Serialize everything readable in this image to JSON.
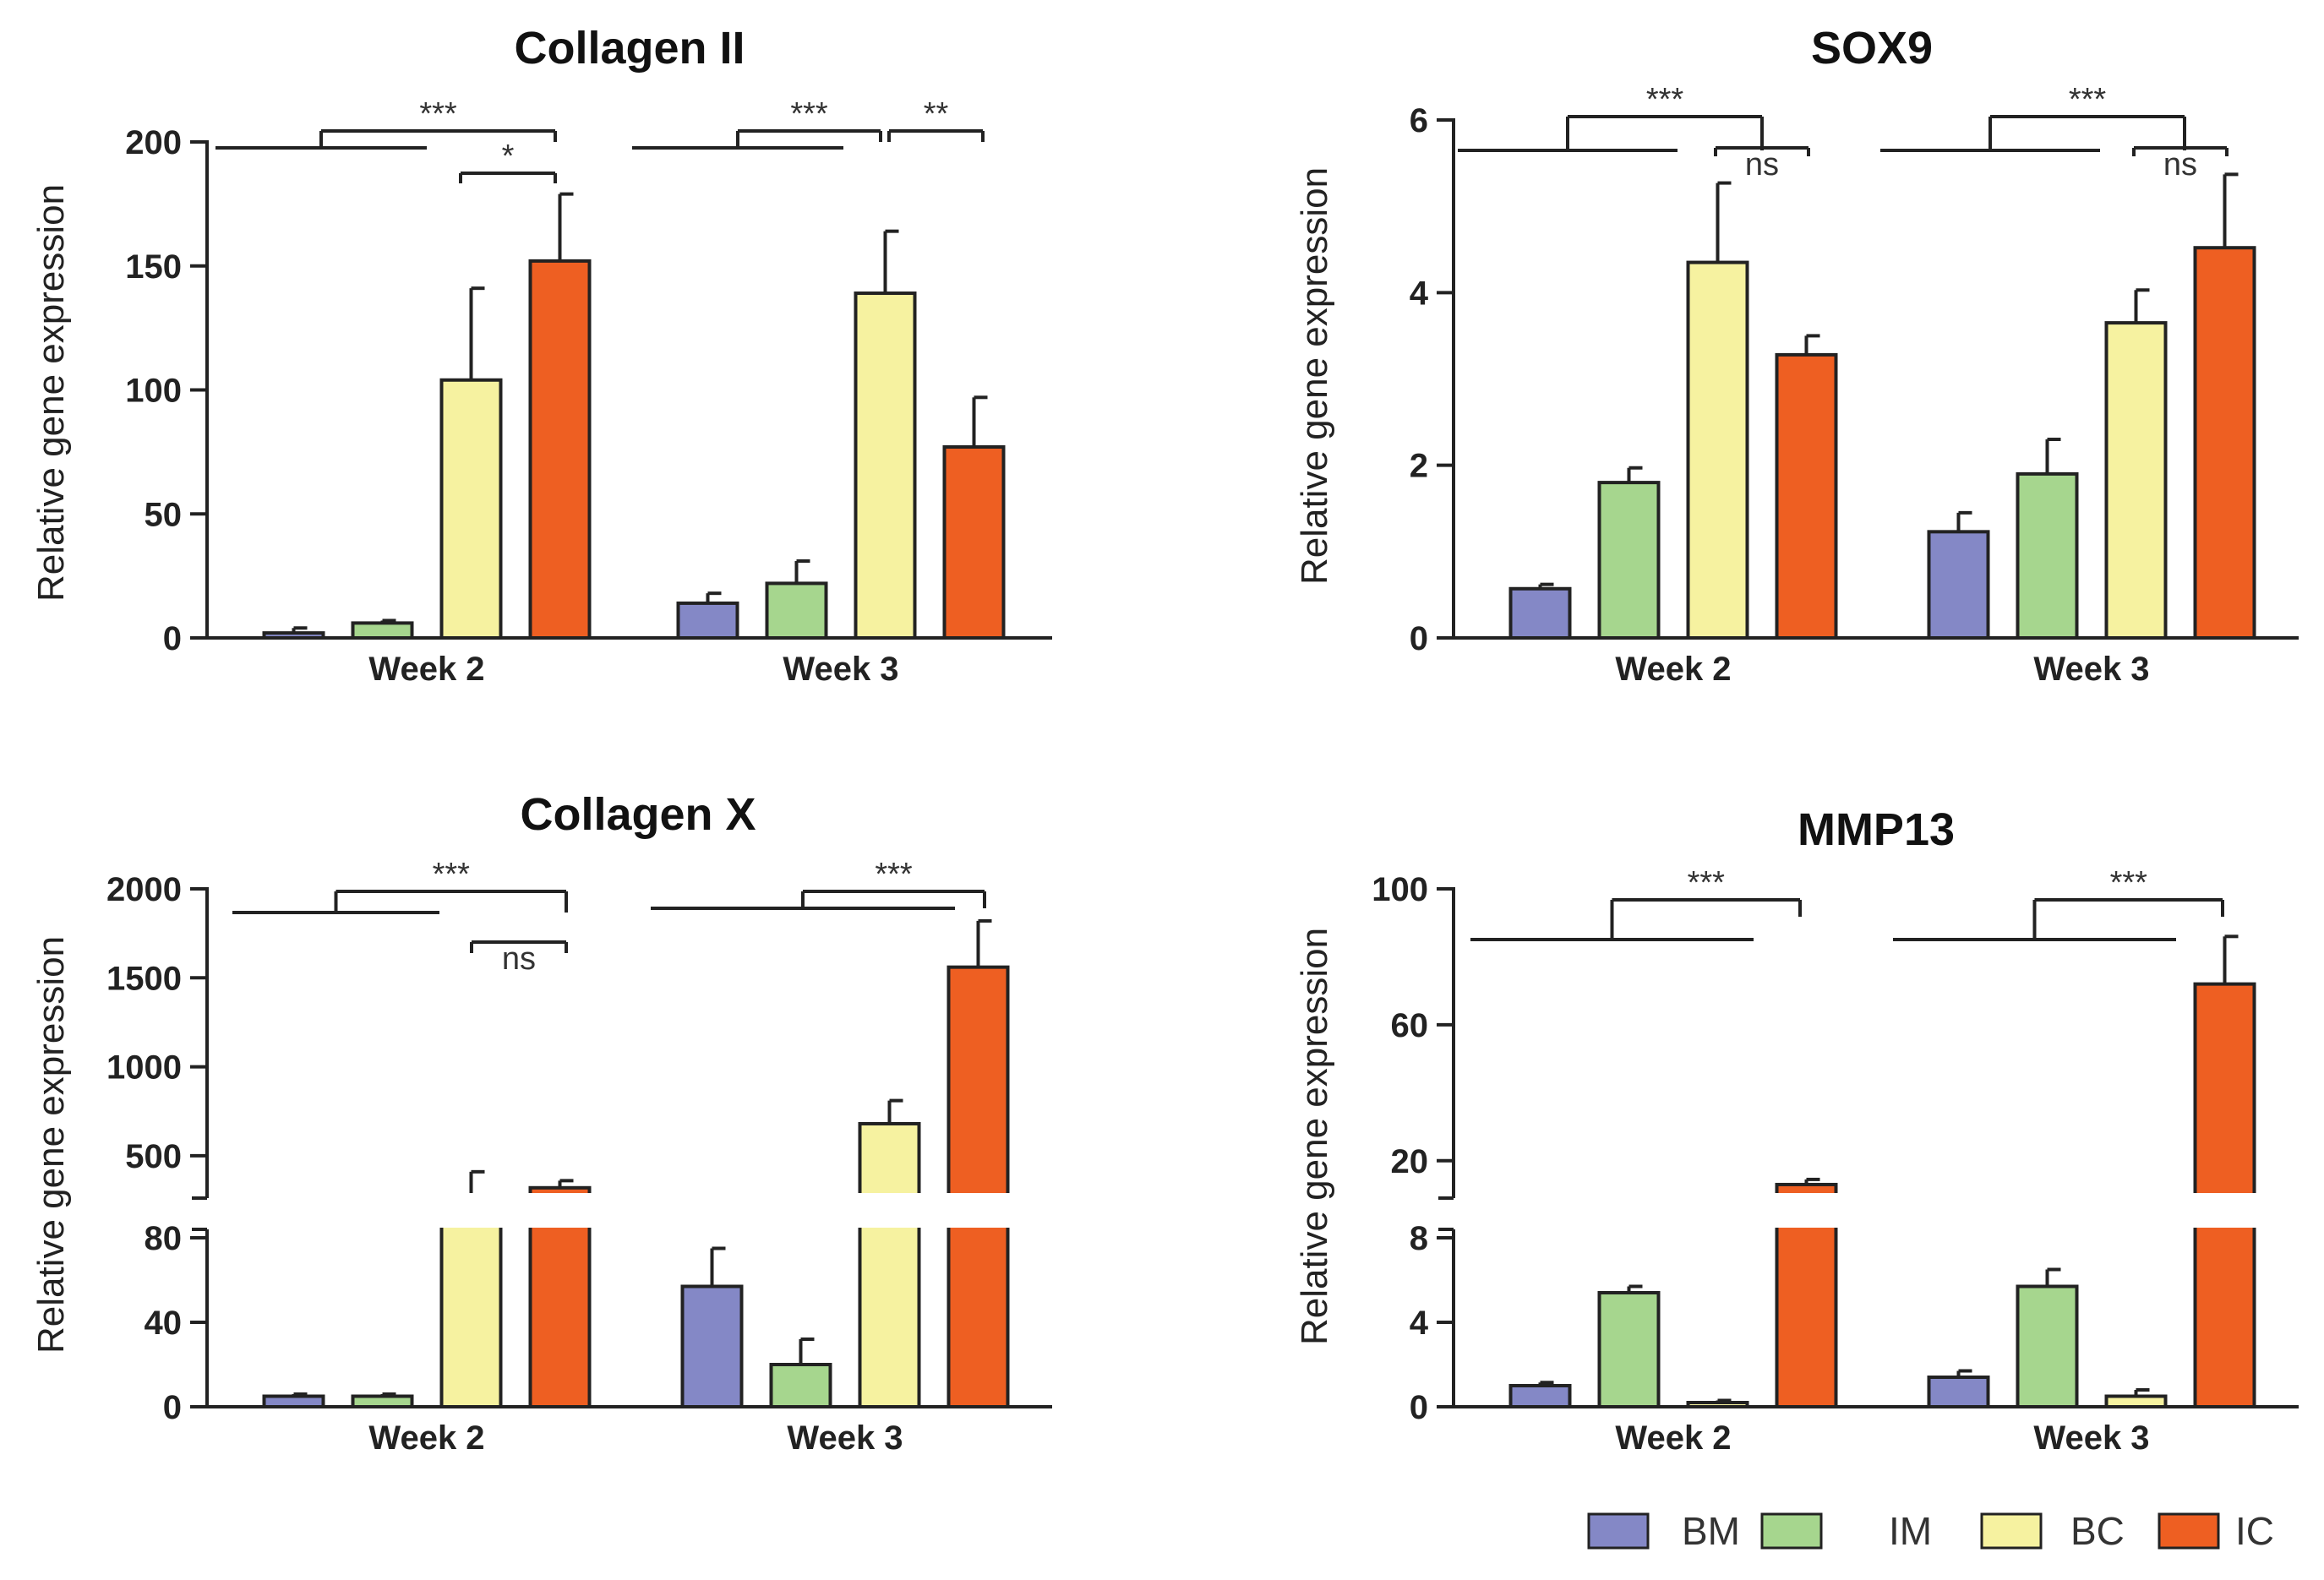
{
  "legend": [
    {
      "name": "BM",
      "color": "#8488C6"
    },
    {
      "name": "IM",
      "color": "#A6D68E"
    },
    {
      "name": "BC",
      "color": "#F6F2A0"
    },
    {
      "name": "IC",
      "color": "#EE5F22"
    }
  ],
  "chart_data": [
    {
      "type": "bar",
      "title": "Collagen II",
      "ylabel": "Relative gene expression",
      "categories": [
        "Week 2",
        "Week 3"
      ],
      "ylim": [
        0,
        200
      ],
      "yticks": [
        "0",
        "50",
        "100",
        "150",
        "200"
      ],
      "series": [
        {
          "name": "BM",
          "values": [
            2,
            14
          ],
          "errors": [
            2,
            4
          ]
        },
        {
          "name": "IM",
          "values": [
            6,
            22
          ],
          "errors": [
            1,
            9
          ]
        },
        {
          "name": "BC",
          "values": [
            104,
            139
          ],
          "errors": [
            37,
            25
          ]
        },
        {
          "name": "IC",
          "values": [
            152,
            77
          ],
          "errors": [
            27,
            20
          ]
        }
      ],
      "significance": [
        {
          "label": "***",
          "week": 0,
          "groups": "BM,IM vs IC"
        },
        {
          "label": "*",
          "week": 0,
          "groups": "BC vs IC"
        },
        {
          "label": "***",
          "week": 1,
          "groups": "BM,IM vs BC"
        },
        {
          "label": "**",
          "week": 1,
          "groups": "BC vs IC"
        }
      ]
    },
    {
      "type": "bar",
      "title": "SOX9",
      "ylabel": "Relative gene expression",
      "categories": [
        "Week 2",
        "Week 3"
      ],
      "ylim": [
        0,
        6
      ],
      "yticks": [
        "0",
        "2",
        "4",
        "6"
      ],
      "series": [
        {
          "name": "BM",
          "values": [
            0.57,
            1.23
          ],
          "errors": [
            0.05,
            0.22
          ]
        },
        {
          "name": "IM",
          "values": [
            1.8,
            1.9
          ],
          "errors": [
            0.17,
            0.4
          ]
        },
        {
          "name": "BC",
          "values": [
            4.35,
            3.65
          ],
          "errors": [
            0.92,
            0.38
          ]
        },
        {
          "name": "IC",
          "values": [
            3.28,
            4.52
          ],
          "errors": [
            0.22,
            0.85
          ]
        }
      ],
      "significance": [
        {
          "label": "***",
          "week": 0,
          "groups": "BM,IM vs BC"
        },
        {
          "label": "ns",
          "week": 0,
          "groups": "BC vs IC"
        },
        {
          "label": "***",
          "week": 1,
          "groups": "BM,IM vs IC"
        },
        {
          "label": "ns",
          "week": 1,
          "groups": "BC vs IC"
        }
      ]
    },
    {
      "type": "bar",
      "title": "Collagen X",
      "ylabel": "Relative gene expression",
      "categories": [
        "Week 2",
        "Week 3"
      ],
      "broken_axis": {
        "lower": [
          0,
          80
        ],
        "upper": [
          300,
          2000
        ]
      },
      "yticks_lower": [
        "0",
        "40",
        "80"
      ],
      "yticks_upper": [
        "500",
        "1000",
        "1500",
        "2000"
      ],
      "series": [
        {
          "name": "BM",
          "values": [
            5,
            57
          ],
          "errors": [
            1,
            18
          ]
        },
        {
          "name": "IM",
          "values": [
            5,
            20
          ],
          "errors": [
            1,
            12
          ]
        },
        {
          "name": "BC",
          "values": [
            260,
            680
          ],
          "errors": [
            150,
            130
          ]
        },
        {
          "name": "IC",
          "values": [
            320,
            1560
          ],
          "errors": [
            40,
            260
          ]
        }
      ],
      "significance": [
        {
          "label": "***",
          "week": 0,
          "groups": "BM,IM vs IC"
        },
        {
          "label": "ns",
          "week": 0,
          "groups": "BC vs IC"
        },
        {
          "label": "***",
          "week": 1,
          "groups": "BM,IM,BC vs IC"
        }
      ]
    },
    {
      "type": "bar",
      "title": "MMP13",
      "ylabel": "Relative gene expression",
      "categories": [
        "Week 2",
        "Week 3"
      ],
      "broken_axis": {
        "lower": [
          0,
          8
        ],
        "upper": [
          11,
          100
        ]
      },
      "yticks_lower": [
        "0",
        "4",
        "8"
      ],
      "yticks_upper": [
        "20",
        "60",
        "100"
      ],
      "series": [
        {
          "name": "BM",
          "values": [
            1.0,
            1.4
          ],
          "errors": [
            0.15,
            0.3
          ]
        },
        {
          "name": "IM",
          "values": [
            5.4,
            5.7
          ],
          "errors": [
            0.3,
            0.8
          ]
        },
        {
          "name": "BC",
          "values": [
            0.2,
            0.5
          ],
          "errors": [
            0.1,
            0.3
          ]
        },
        {
          "name": "IC",
          "values": [
            13,
            72
          ],
          "errors": [
            1.5,
            14
          ]
        }
      ],
      "significance": [
        {
          "label": "***",
          "week": 0,
          "groups": "BM,IM,BC vs IC"
        },
        {
          "label": "***",
          "week": 1,
          "groups": "BM,IM,BC vs IC"
        }
      ]
    }
  ]
}
